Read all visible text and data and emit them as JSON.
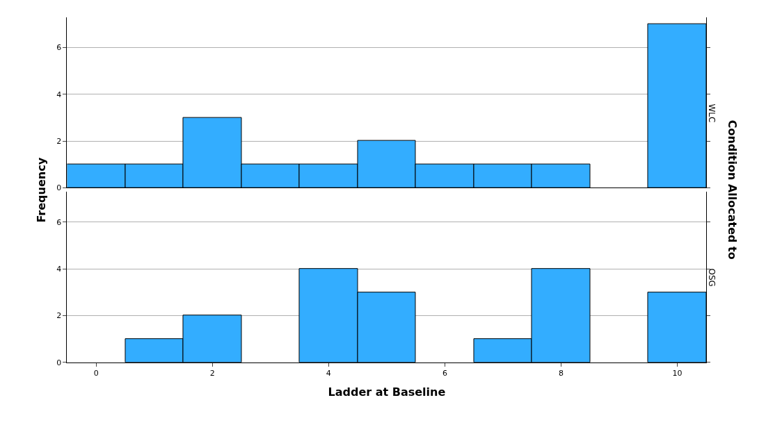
{
  "chart_data": [
    {
      "type": "histogram",
      "ylabel": "Frequency",
      "y2label": "Condition Allocated to",
      "annotations": [
        "WLC"
      ],
      "bins": [
        -0.5,
        0.5,
        1.5,
        2.5,
        3.5,
        4.5,
        5.5,
        6.5,
        7.5,
        8.5,
        9.5,
        10.5
      ],
      "values": [
        1,
        1,
        3,
        1,
        1,
        2,
        1,
        1,
        1,
        0,
        7
      ],
      "color": "#33adff",
      "xlim": [
        -0.5,
        10.5
      ],
      "xticks": [
        0,
        2,
        4,
        6,
        8,
        10
      ],
      "ylim": [
        0,
        7.3
      ],
      "yticks": [
        0,
        2,
        4,
        6
      ],
      "grid": "y",
      "tick_labels": "y"
    },
    {
      "type": "histogram",
      "xlabel": "Ladder at Baseline",
      "annotations": [
        "OSG"
      ],
      "bins": [
        -0.5,
        0.5,
        1.5,
        2.5,
        3.5,
        4.5,
        5.5,
        6.5,
        7.5,
        8.5,
        9.5,
        10.5
      ],
      "values": [
        0,
        1,
        2,
        0,
        4,
        3,
        0,
        1,
        4,
        0,
        3
      ],
      "color": "#33adff",
      "xlim": [
        -0.5,
        10.5
      ],
      "xticks": [
        0,
        2,
        4,
        6,
        8,
        10
      ],
      "ylim": [
        0,
        7.3
      ],
      "yticks": [
        0,
        2,
        4,
        6
      ],
      "grid": "y"
    }
  ]
}
